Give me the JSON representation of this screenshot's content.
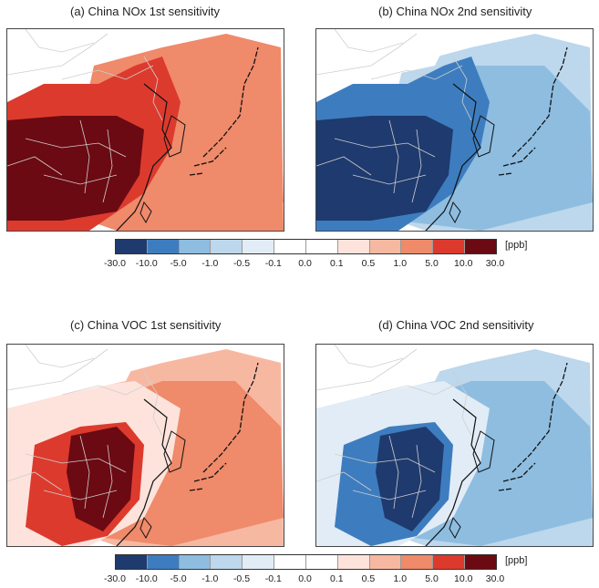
{
  "panels": [
    {
      "title": "(a) China NOx 1st sensitivity",
      "variant": "nox1"
    },
    {
      "title": "(b) China NOx 2nd sensitivity",
      "variant": "nox2"
    },
    {
      "title": "(c) China VOC 1st sensitivity",
      "variant": "voc1"
    },
    {
      "title": "(d) China VOC 2nd sensitivity",
      "variant": "voc2"
    }
  ],
  "colorbar": {
    "unit": "[ppb]",
    "ticks": [
      "-30.0",
      "-10.0",
      "-5.0",
      "-1.0",
      "-0.5",
      "-0.1",
      "0.0",
      "0.1",
      "0.5",
      "1.0",
      "5.0",
      "10.0",
      "30.0"
    ],
    "colors": [
      "#1f3a6e",
      "#3d7dbf",
      "#8ebde0",
      "#bdd7ec",
      "#e1ecf6",
      "#ffffff",
      "#ffffff",
      "#fde3dc",
      "#f7b8a2",
      "#ef8a6a",
      "#dd3a2e",
      "#6b0a12"
    ]
  }
}
